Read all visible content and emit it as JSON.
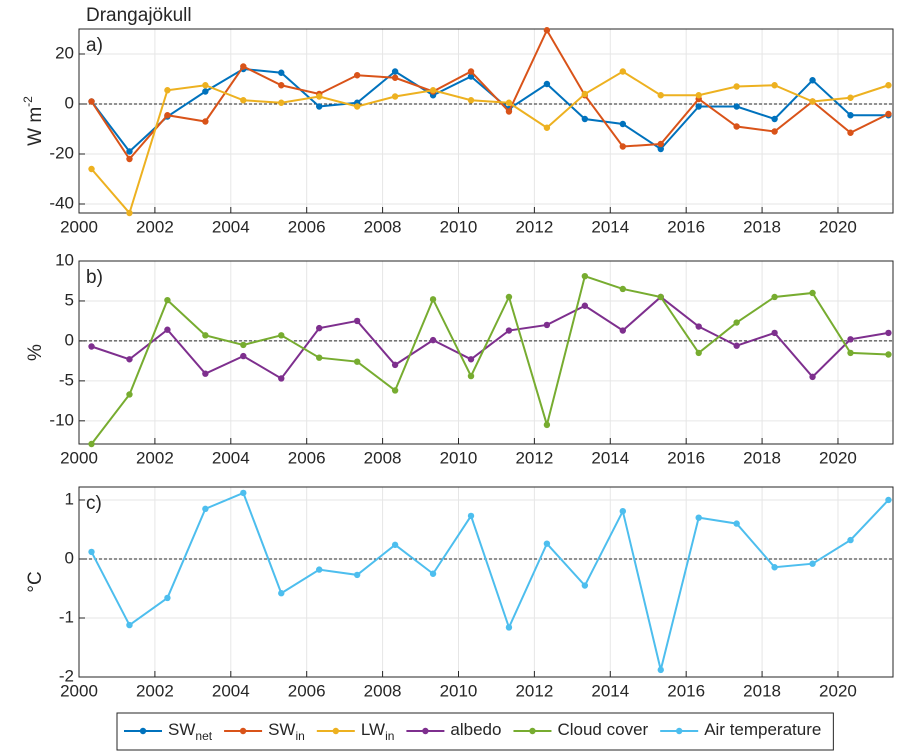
{
  "chart_data": [
    {
      "type": "line",
      "title": "Drangajökull",
      "annotation": "a)",
      "ylabel": "W m",
      "ylabel_sup": "-2",
      "x": [
        2000.33,
        2001.33,
        2002.33,
        2003.33,
        2004.33,
        2005.33,
        2006.33,
        2007.33,
        2008.33,
        2009.33,
        2010.33,
        2011.33,
        2012.33,
        2013.33,
        2014.33,
        2015.33,
        2016.33,
        2017.33,
        2018.33,
        2019.33,
        2020.33,
        2021.33
      ],
      "xlim": [
        2000,
        2021.45
      ],
      "xticks": [
        2000,
        2002,
        2004,
        2006,
        2008,
        2010,
        2012,
        2014,
        2016,
        2018,
        2020
      ],
      "ylim": [
        -43.6,
        30
      ],
      "yticks": [
        -40,
        -20,
        0,
        20
      ],
      "grid": true,
      "zero_line": true,
      "series": [
        {
          "name": "SW",
          "subscript": "net",
          "color": "#0072BD",
          "values": [
            1,
            -19,
            -5,
            5,
            14,
            12.5,
            -1,
            0.5,
            13,
            3.5,
            11,
            -2,
            8,
            -6,
            -8,
            -18,
            -1,
            -1,
            -6,
            9.5,
            -4.5,
            -4.5
          ]
        },
        {
          "name": "SW",
          "subscript": "in",
          "color": "#D95319",
          "values": [
            1,
            -22,
            -4.5,
            -7,
            15,
            7.5,
            4,
            11.5,
            10.5,
            5,
            13,
            -3,
            29.5,
            3.5,
            -17,
            -16,
            2,
            -9,
            -11,
            1,
            -11.5,
            -4
          ]
        },
        {
          "name": "LW",
          "subscript": "in",
          "color": "#EDB120",
          "values": [
            -26,
            -43.6,
            5.5,
            7.5,
            1.5,
            0.5,
            3,
            -1,
            3,
            5.5,
            1.5,
            0.5,
            -9.5,
            4,
            13,
            3.5,
            3.5,
            7,
            7.5,
            1,
            2.5,
            7.5
          ]
        }
      ]
    },
    {
      "type": "line",
      "annotation": "b)",
      "ylabel": "%",
      "x": [
        2000.33,
        2001.33,
        2002.33,
        2003.33,
        2004.33,
        2005.33,
        2006.33,
        2007.33,
        2008.33,
        2009.33,
        2010.33,
        2011.33,
        2012.33,
        2013.33,
        2014.33,
        2015.33,
        2016.33,
        2017.33,
        2018.33,
        2019.33,
        2020.33,
        2021.33
      ],
      "xlim": [
        2000,
        2021.45
      ],
      "xticks": [
        2000,
        2002,
        2004,
        2006,
        2008,
        2010,
        2012,
        2014,
        2016,
        2018,
        2020
      ],
      "ylim": [
        -12.9,
        10
      ],
      "yticks": [
        -10,
        -5,
        0,
        5,
        10
      ],
      "grid": true,
      "zero_line": true,
      "series": [
        {
          "name": "albedo",
          "color": "#7E2F8E",
          "values": [
            -0.7,
            -2.3,
            1.4,
            -4.1,
            -1.9,
            -4.7,
            1.6,
            2.5,
            -3,
            0.1,
            -2.3,
            1.3,
            2,
            4.4,
            1.3,
            5.5,
            1.8,
            -0.6,
            1,
            -4.5,
            0.2,
            1
          ]
        },
        {
          "name": "Cloud cover",
          "color": "#77AC30",
          "values": [
            -12.9,
            -6.7,
            5.1,
            0.7,
            -0.5,
            0.7,
            -2.1,
            -2.6,
            -6.2,
            5.2,
            -4.4,
            5.5,
            -10.5,
            8.1,
            6.5,
            5.5,
            -1.5,
            2.3,
            5.5,
            6,
            -1.5,
            -1.7
          ]
        }
      ]
    },
    {
      "type": "line",
      "annotation": "c)",
      "ylabel": "°C",
      "x": [
        2000.33,
        2001.33,
        2002.33,
        2003.33,
        2004.33,
        2005.33,
        2006.33,
        2007.33,
        2008.33,
        2009.33,
        2010.33,
        2011.33,
        2012.33,
        2013.33,
        2014.33,
        2015.33,
        2016.33,
        2017.33,
        2018.33,
        2019.33,
        2020.33,
        2021.33
      ],
      "xlim": [
        2000,
        2021.45
      ],
      "xticks": [
        2000,
        2002,
        2004,
        2006,
        2008,
        2010,
        2012,
        2014,
        2016,
        2018,
        2020
      ],
      "ylim": [
        -2,
        1.22
      ],
      "yticks": [
        -2,
        -1,
        0,
        1
      ],
      "grid": true,
      "zero_line": true,
      "series": [
        {
          "name": "Air temperature",
          "color": "#4DBEEE",
          "values": [
            0.12,
            -1.12,
            -0.66,
            0.85,
            1.12,
            -0.58,
            -0.18,
            -0.27,
            0.24,
            -0.25,
            0.73,
            -1.16,
            0.26,
            -0.45,
            0.81,
            -1.88,
            0.7,
            0.6,
            -0.14,
            -0.08,
            0.32,
            1.0
          ]
        }
      ]
    }
  ]
}
